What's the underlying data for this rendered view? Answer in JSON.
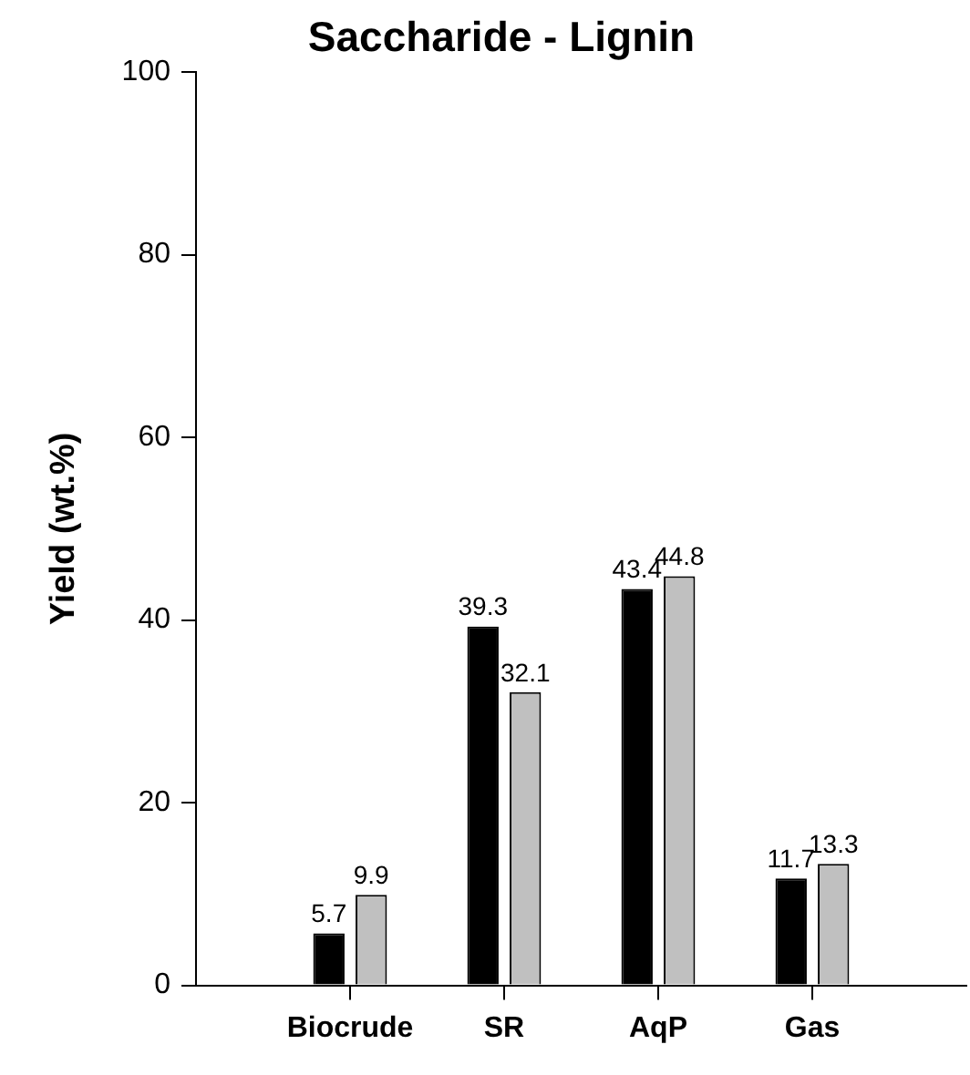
{
  "chart_data": {
    "type": "bar",
    "title": "Saccharide - Lignin",
    "ylabel": "Yield (wt.%)",
    "categories": [
      "Biocrude",
      "SR",
      "AqP",
      "Gas"
    ],
    "series": [
      {
        "color": "#000000",
        "values": [
          5.7,
          39.3,
          43.4,
          11.7
        ]
      },
      {
        "color": "#c0c0c0",
        "values": [
          9.9,
          32.1,
          44.8,
          13.3
        ]
      }
    ],
    "ylim": [
      0,
      100
    ],
    "yticks": [
      0,
      20,
      40,
      60,
      80,
      100
    ],
    "grid": false,
    "legend": false,
    "data_labels": true
  }
}
